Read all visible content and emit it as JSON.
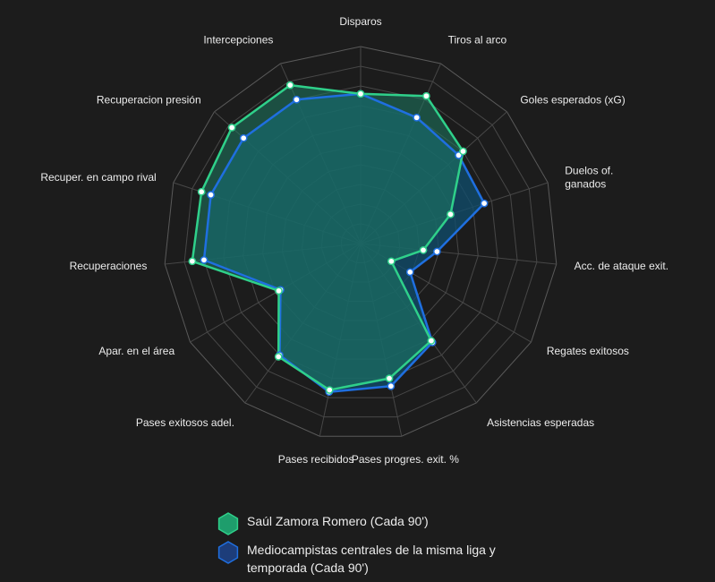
{
  "chart_data": {
    "type": "radar",
    "axes": [
      [
        "Disparos"
      ],
      [
        "Tiros al arco"
      ],
      [
        "Goles esperados (xG)"
      ],
      [
        "Duelos of.",
        "ganados"
      ],
      [
        "Acc. de ataque exit."
      ],
      [
        "Regates exitosos"
      ],
      [
        "Asistencias esperadas"
      ],
      [
        "Pases progres. exit. %"
      ],
      [
        "Pases recibidos"
      ],
      [
        "Pases exitosos adel."
      ],
      [
        "Apar. en el área"
      ],
      [
        "Recuperaciones"
      ],
      [
        "Recuper. en campo rival"
      ],
      [
        "Recuperacion presión"
      ],
      [
        "Intercepciones"
      ]
    ],
    "rlim": [
      0,
      10
    ],
    "grid_levels": 10,
    "grid": true,
    "legend_position": "bottom",
    "series": [
      {
        "name": "Saúl Zamora Romero (Cada 90')",
        "color": "#2fd08a",
        "fill": "#1e7a63",
        "values": [
          7.6,
          8.2,
          7.0,
          4.8,
          3.2,
          1.8,
          6.1,
          7.0,
          7.6,
          7.1,
          4.8,
          8.6,
          8.5,
          8.8,
          8.8
        ]
      },
      {
        "name": "Mediocampistas centrales de la misma liga y temporada (Cada 90')",
        "color": "#1f6fe0",
        "fill": "#0f4d6e",
        "values": [
          7.6,
          7.0,
          6.7,
          6.6,
          3.9,
          2.9,
          6.2,
          7.4,
          7.7,
          7.0,
          4.7,
          8.0,
          8.0,
          8.0,
          8.0
        ]
      }
    ]
  }
}
